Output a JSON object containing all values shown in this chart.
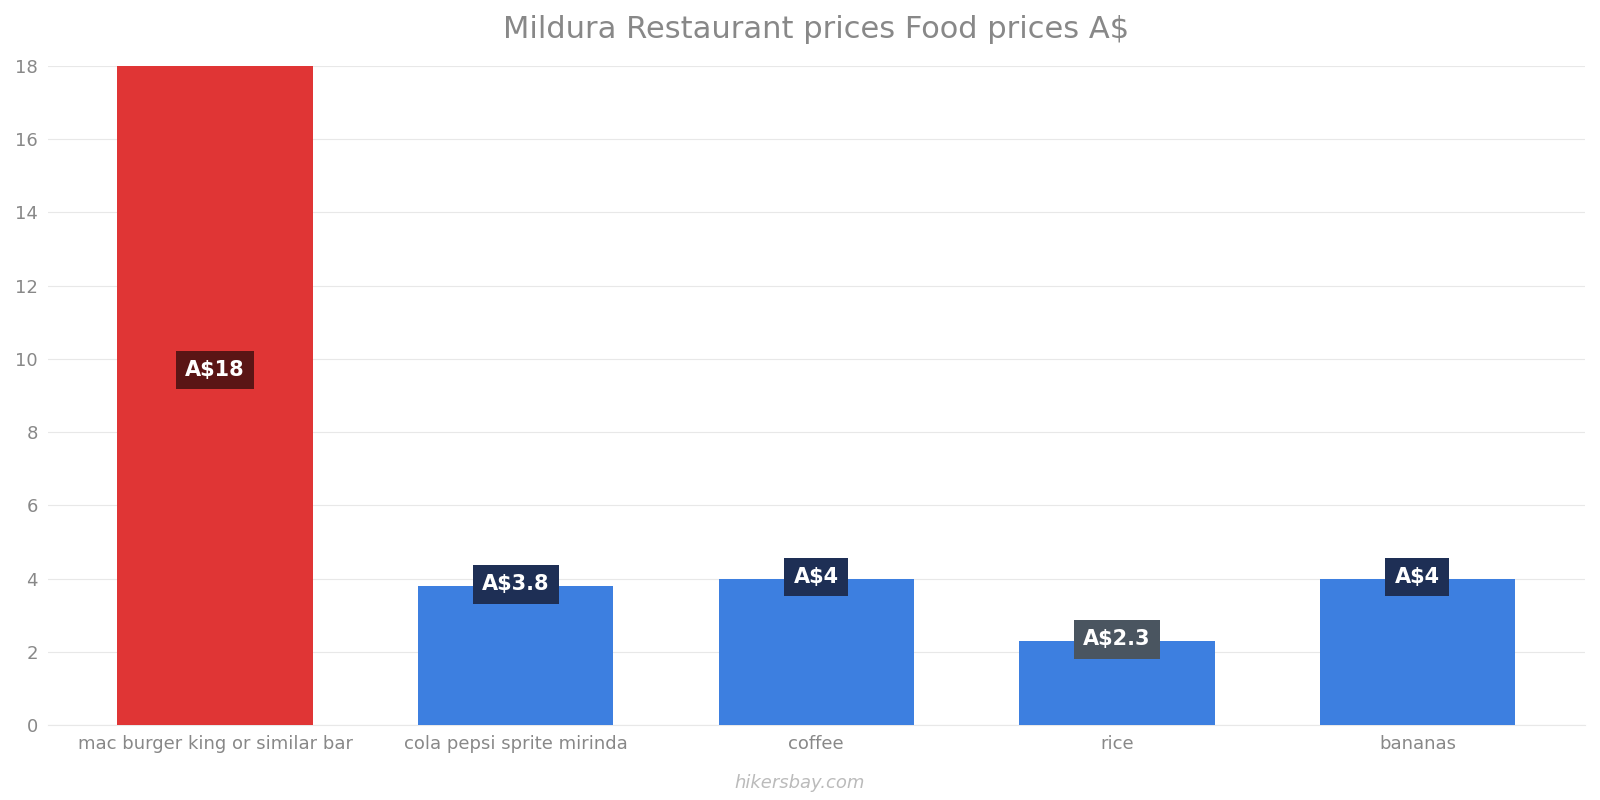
{
  "title": "Mildura Restaurant prices Food prices A$",
  "categories": [
    "mac burger king or similar bar",
    "cola pepsi sprite mirinda",
    "coffee",
    "rice",
    "bananas"
  ],
  "values": [
    18,
    3.8,
    4,
    2.3,
    4
  ],
  "bar_colors": [
    "#e03535",
    "#3d7fe0",
    "#3d7fe0",
    "#3d7fe0",
    "#3d7fe0"
  ],
  "labels": [
    "A$18",
    "A$3.8",
    "A$4",
    "A$2.3",
    "A$4"
  ],
  "label_bg_colors": [
    "#5a1515",
    "#1e2f55",
    "#1e2f55",
    "#4a5560",
    "#1e2f55"
  ],
  "ylim": [
    0,
    18
  ],
  "yticks": [
    0,
    2,
    4,
    6,
    8,
    10,
    12,
    14,
    16,
    18
  ],
  "background_color": "#ffffff",
  "grid_color": "#e8e8e8",
  "title_color": "#888888",
  "tick_color": "#888888",
  "watermark": "hikersbay.com",
  "label_font_size": 15,
  "title_font_size": 22,
  "bar_width": 0.65
}
